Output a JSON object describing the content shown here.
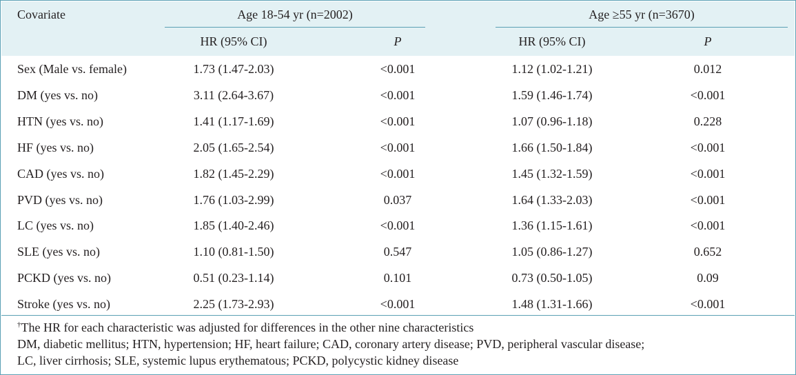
{
  "header": {
    "covariate": "Covariate",
    "group1": "Age 18-54 yr (n=2002)",
    "group2": "Age ≥55 yr (n=3670)",
    "hr_label": "HR (95% CI)",
    "p_label": "P"
  },
  "rows": [
    {
      "covariate": "Sex (Male vs. female)",
      "hr1": "1.73 (1.47-2.03)",
      "p1": "<0.001",
      "hr2": "1.12 (1.02-1.21)",
      "p2": "0.012"
    },
    {
      "covariate": "DM (yes vs. no)",
      "hr1": "3.11 (2.64-3.67)",
      "p1": "<0.001",
      "hr2": "1.59 (1.46-1.74)",
      "p2": "<0.001"
    },
    {
      "covariate": "HTN (yes vs. no)",
      "hr1": "1.41 (1.17-1.69)",
      "p1": "<0.001",
      "hr2": "1.07 (0.96-1.18)",
      "p2": "0.228"
    },
    {
      "covariate": "HF (yes vs. no)",
      "hr1": "2.05 (1.65-2.54)",
      "p1": "<0.001",
      "hr2": "1.66 (1.50-1.84)",
      "p2": "<0.001"
    },
    {
      "covariate": "CAD (yes vs. no)",
      "hr1": "1.82 (1.45-2.29)",
      "p1": "<0.001",
      "hr2": "1.45 (1.32-1.59)",
      "p2": "<0.001"
    },
    {
      "covariate": "PVD (yes vs. no)",
      "hr1": "1.76 (1.03-2.99)",
      "p1": "0.037",
      "hr2": "1.64 (1.33-2.03)",
      "p2": "<0.001"
    },
    {
      "covariate": "LC (yes vs. no)",
      "hr1": "1.85 (1.40-2.46)",
      "p1": "<0.001",
      "hr2": "1.36 (1.15-1.61)",
      "p2": "<0.001"
    },
    {
      "covariate": "SLE (yes vs. no)",
      "hr1": "1.10 (0.81-1.50)",
      "p1": "0.547",
      "hr2": "1.05 (0.86-1.27)",
      "p2": "0.652"
    },
    {
      "covariate": "PCKD (yes vs. no)",
      "hr1": "0.51 (0.23-1.14)",
      "p1": "0.101",
      "hr2": "0.73 (0.50-1.05)",
      "p2": "0.09"
    },
    {
      "covariate": "Stroke (yes vs. no)",
      "hr1": "2.25 (1.73-2.93)",
      "p1": "<0.001",
      "hr2": "1.48 (1.31-1.66)",
      "p2": "<0.001"
    }
  ],
  "footnotes": {
    "dagger": "†",
    "line1": "The HR for each characteristic was adjusted for differences in the other nine characteristics",
    "line2": "DM, diabetic mellitus; HTN, hypertension; HF, heart failure; CAD, coronary artery disease; PVD, peripheral vascular disease;",
    "line3": "LC, liver cirrhosis; SLE, systemic lupus erythematous; PCKD, polycystic kidney disease"
  },
  "colors": {
    "header_background": "#e3f1f4",
    "rule": "#5aa0b4",
    "text": "#231f20"
  }
}
